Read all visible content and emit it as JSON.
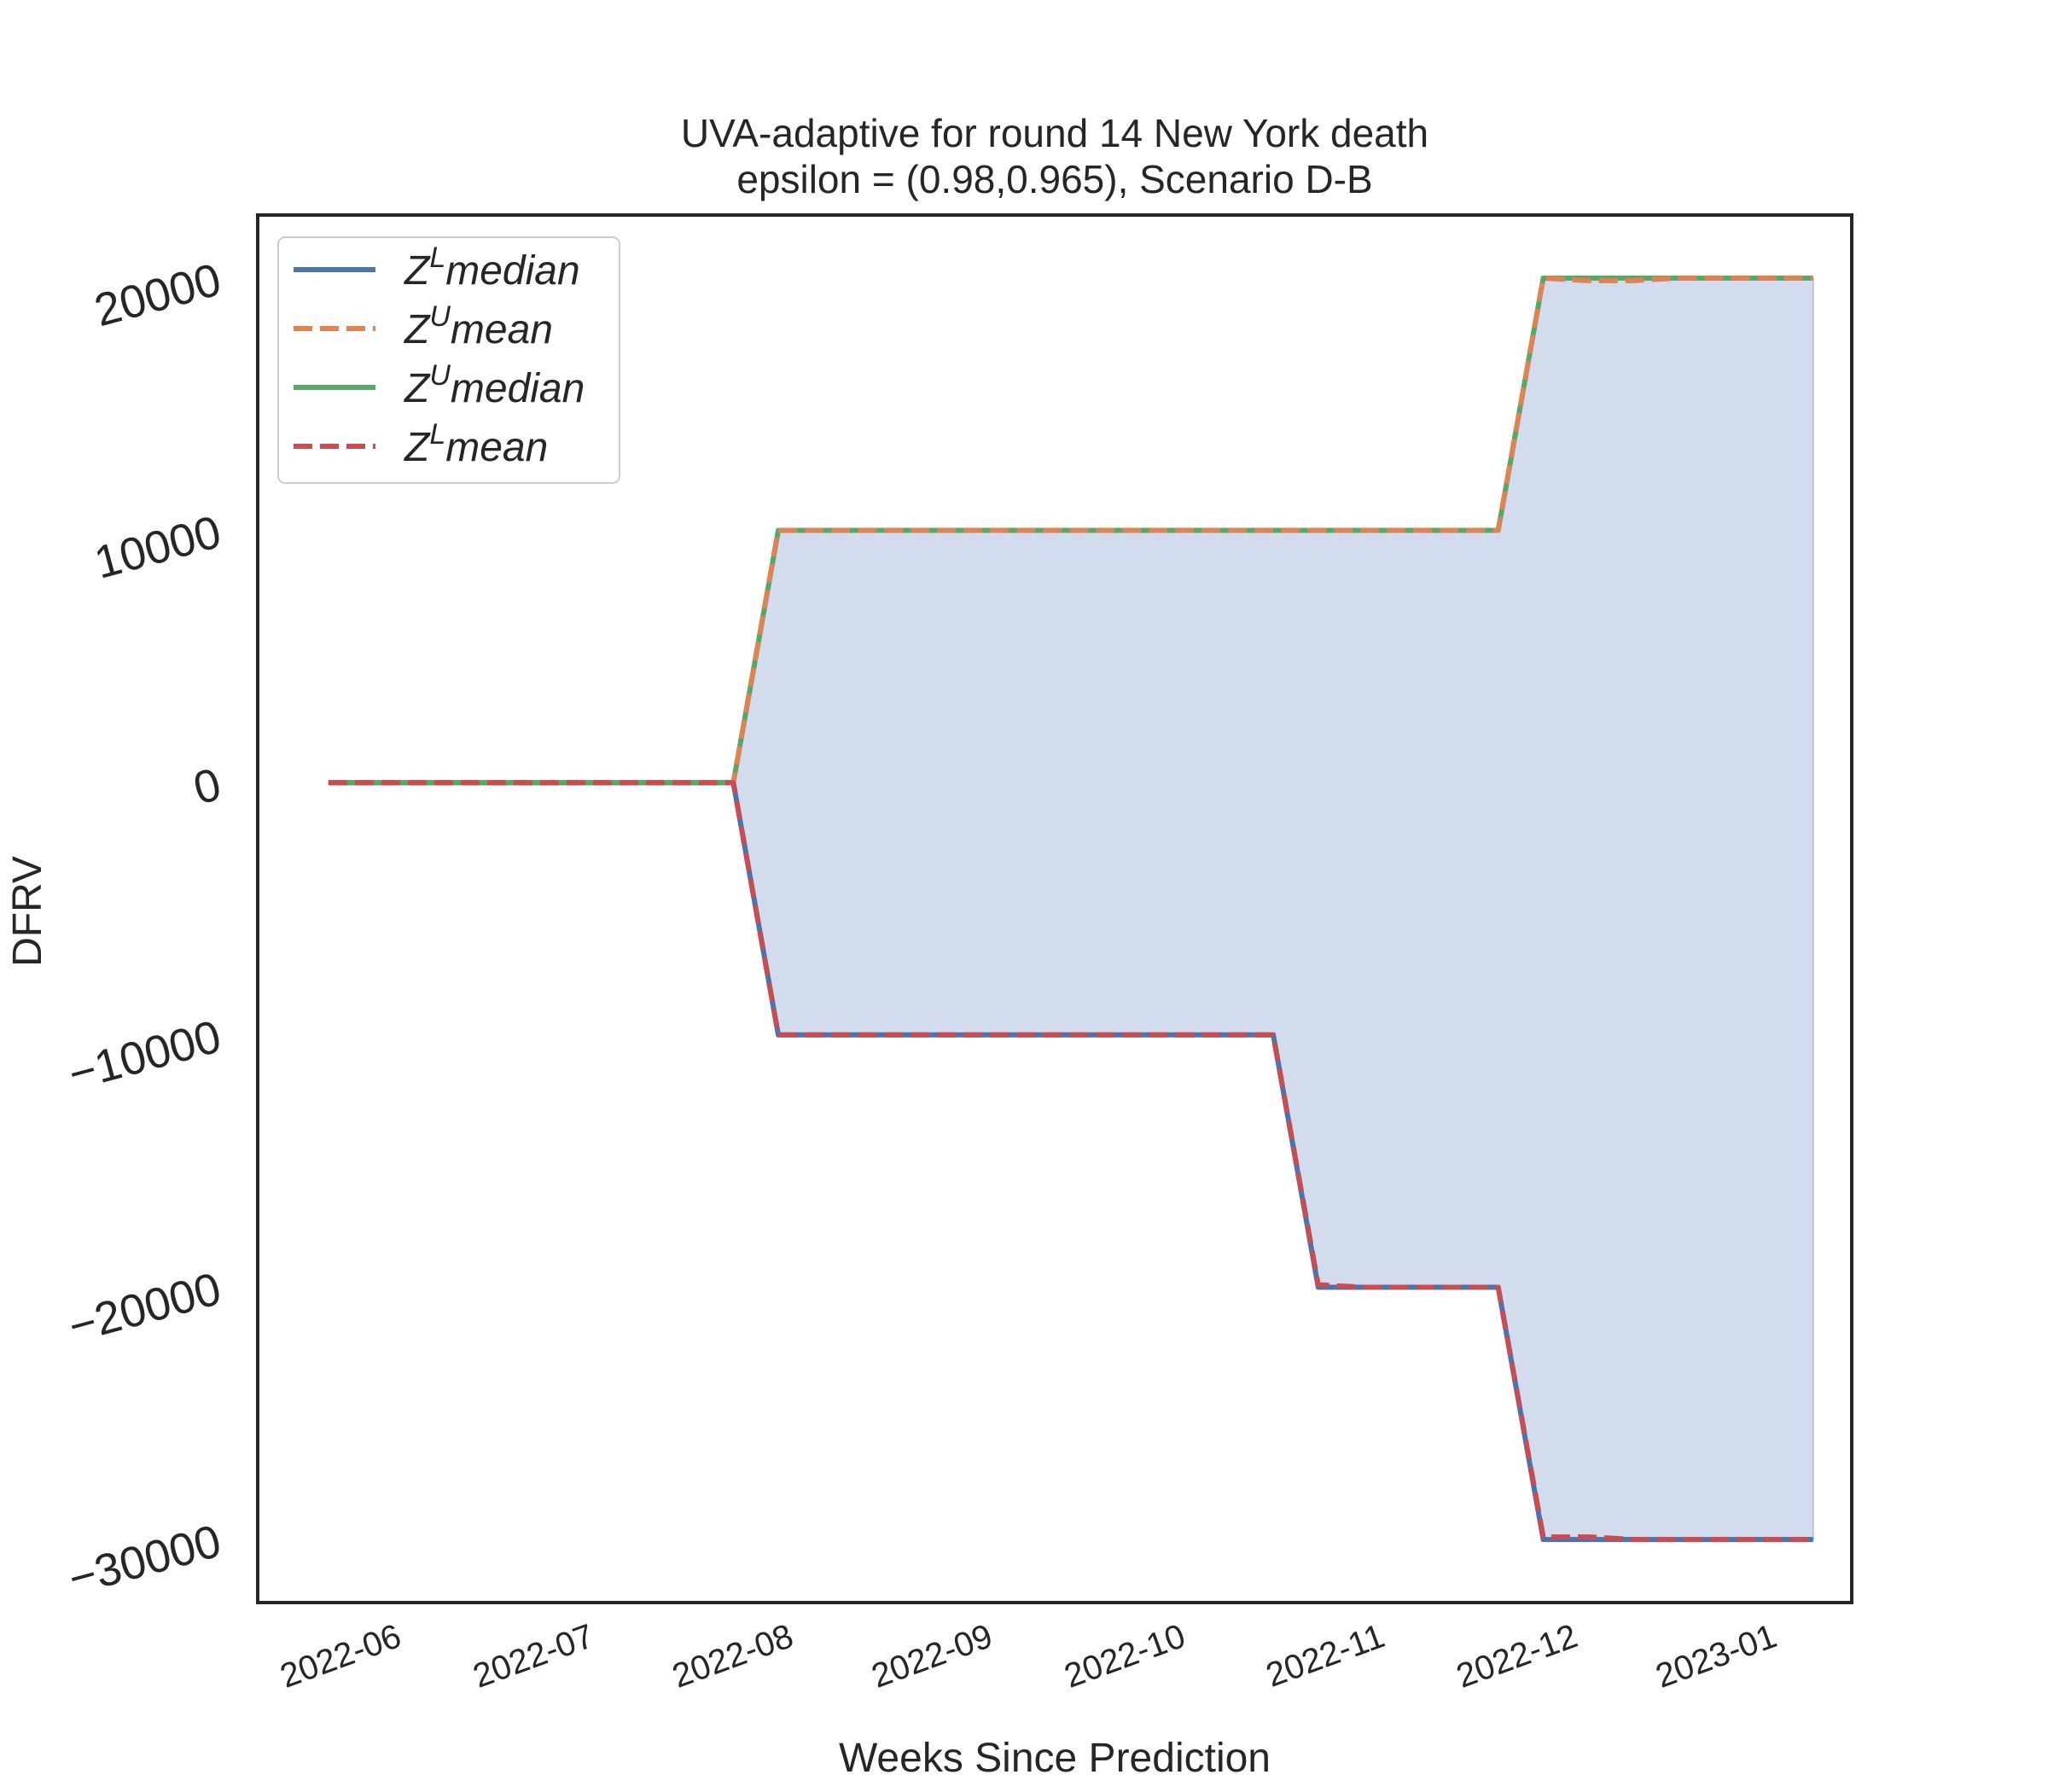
{
  "chart_data": {
    "type": "line",
    "title": "UVA-adaptive for round 14 New York  death",
    "subtitle": "epsilon = (0.98,0.965), Scenario D-B",
    "xlabel": "Weeks Since Prediction",
    "ylabel": "DFRV",
    "x_tick_labels": [
      "2022-06",
      "2022-07",
      "2022-08",
      "2022-09",
      "2022-10",
      "2022-11",
      "2022-12",
      "2023-01"
    ],
    "y_ticks": [
      -30000,
      -20000,
      -10000,
      0,
      10000,
      20000
    ],
    "y_tick_labels": [
      "−30000",
      "−20000",
      "−10000",
      "0",
      "10000",
      "20000"
    ],
    "ylim": [
      -32500,
      22500
    ],
    "xlim": [
      "2022-05-10",
      "2023-01-13"
    ],
    "grid": false,
    "legend_position": "top-left",
    "fill_between": {
      "lower": "Z^L median",
      "upper": "Z^U median",
      "color": "#d3dcec"
    },
    "x": [
      "2022-05-21",
      "2022-05-28",
      "2022-06-04",
      "2022-06-11",
      "2022-06-18",
      "2022-06-25",
      "2022-07-02",
      "2022-07-09",
      "2022-07-16",
      "2022-07-23",
      "2022-07-30",
      "2022-08-06",
      "2022-08-13",
      "2022-08-20",
      "2022-08-27",
      "2022-09-03",
      "2022-09-10",
      "2022-09-17",
      "2022-09-24",
      "2022-10-01",
      "2022-10-08",
      "2022-10-15",
      "2022-10-22",
      "2022-10-29",
      "2022-11-05",
      "2022-11-12",
      "2022-11-19",
      "2022-11-26",
      "2022-12-03",
      "2022-12-10",
      "2022-12-17",
      "2022-12-24",
      "2022-12-31",
      "2023-01-07"
    ],
    "series": [
      {
        "name": "Z^L median",
        "color": "#4c72b0",
        "dash": "solid",
        "values": [
          0,
          0,
          0,
          0,
          0,
          0,
          0,
          0,
          0,
          0,
          -10000,
          -10000,
          -10000,
          -10000,
          -10000,
          -10000,
          -10000,
          -10000,
          -10000,
          -10000,
          -10000,
          -10000,
          -20000,
          -20000,
          -20000,
          -20000,
          -20000,
          -30000,
          -30000,
          -30000,
          -30000,
          -30000,
          -30000,
          -30000
        ]
      },
      {
        "name": "Z^U mean",
        "color": "#dd8452",
        "dash": "dashed",
        "values": [
          0,
          0,
          0,
          0,
          0,
          0,
          0,
          0,
          0,
          0,
          10000,
          10000,
          10000,
          10000,
          10000,
          10000,
          10000,
          10000,
          10000,
          10000,
          10000,
          10000,
          10000,
          10000,
          10000,
          10000,
          10000,
          20000,
          19900,
          19900,
          20000,
          20000,
          20000,
          20000
        ]
      },
      {
        "name": "Z^U median",
        "color": "#55a868",
        "dash": "solid",
        "values": [
          0,
          0,
          0,
          0,
          0,
          0,
          0,
          0,
          0,
          0,
          10000,
          10000,
          10000,
          10000,
          10000,
          10000,
          10000,
          10000,
          10000,
          10000,
          10000,
          10000,
          10000,
          10000,
          10000,
          10000,
          10000,
          20000,
          20000,
          20000,
          20000,
          20000,
          20000,
          20000
        ]
      },
      {
        "name": "Z^L mean",
        "color": "#c44e52",
        "dash": "dashed",
        "values": [
          0,
          0,
          0,
          0,
          0,
          0,
          0,
          0,
          0,
          0,
          -10000,
          -10000,
          -10000,
          -10000,
          -10000,
          -10000,
          -10000,
          -10000,
          -10000,
          -10000,
          -10000,
          -10000,
          -19900,
          -20000,
          -20000,
          -20000,
          -20000,
          -29900,
          -29900,
          -30000,
          -30000,
          -30000,
          -30000,
          -30000
        ]
      }
    ]
  }
}
